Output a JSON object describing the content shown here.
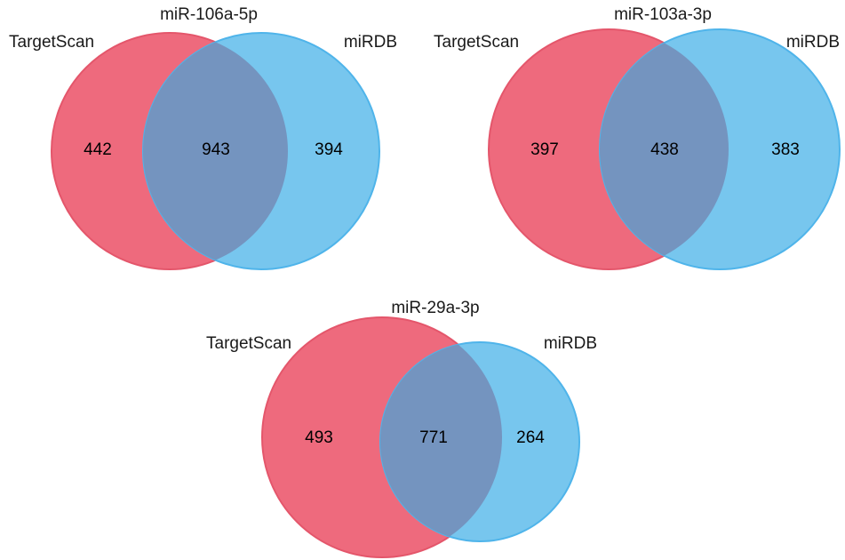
{
  "colors": {
    "left_fill": "#EE6A7D",
    "left_stroke": "#E4566B",
    "right_fill": "#77C6EE",
    "right_stroke": "#4FB4EA",
    "overlap_fill": "#7494BF",
    "text": "#1a1a1a"
  },
  "diagrams": [
    {
      "title": "miR-106a-5p",
      "left_label": "TargetScan",
      "right_label": "miRDB",
      "left_only": "442",
      "shared": "943",
      "right_only": "394"
    },
    {
      "title": "miR-103a-3p",
      "left_label": "TargetScan",
      "right_label": "miRDB",
      "left_only": "397",
      "shared": "438",
      "right_only": "383"
    },
    {
      "title": "miR-29a-3p",
      "left_label": "TargetScan",
      "right_label": "miRDB",
      "left_only": "493",
      "shared": "771",
      "right_only": "264"
    }
  ]
}
